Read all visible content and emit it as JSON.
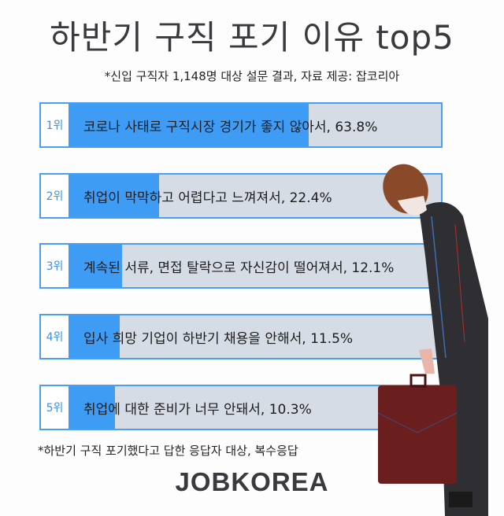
{
  "title": "하반기 구직 포기 이유 top5",
  "subtitle": "*신입 구직자 1,148명 대상 설문 결과, 자료 제공: 잡코리아",
  "footnote": "*하반기 구직 포기했다고 답한 응답자 대상, 복수응답",
  "logo": "JOBKOREA",
  "colors": {
    "bar_fill": "#3f9cf5",
    "bar_track": "#d6dce5",
    "border": "#4a9ff2"
  },
  "chart_data": {
    "type": "bar",
    "orientation": "horizontal",
    "title": "하반기 구직 포기 이유 top5",
    "unit": "%",
    "xlim": [
      0,
      100
    ],
    "categories": [
      {
        "rank": "1위",
        "label": "코로나 사태로 구직시장 경기가 좋지 않아서, 63.8%",
        "value": 63.8
      },
      {
        "rank": "2위",
        "label": "취업이 막막하고 어렵다고 느껴져서, 22.4%",
        "value": 22.4
      },
      {
        "rank": "3위",
        "label": "계속된 서류, 면접 탈락으로 자신감이 떨어져서, 12.1%",
        "value": 12.1
      },
      {
        "rank": "4위",
        "label": "입사 희망 기업이 하반기 채용을 안해서, 11.5%",
        "value": 11.5
      },
      {
        "rank": "5위",
        "label": "취업에 대한 준비가 너무 안돼서, 10.3%",
        "value": 10.3
      }
    ]
  }
}
